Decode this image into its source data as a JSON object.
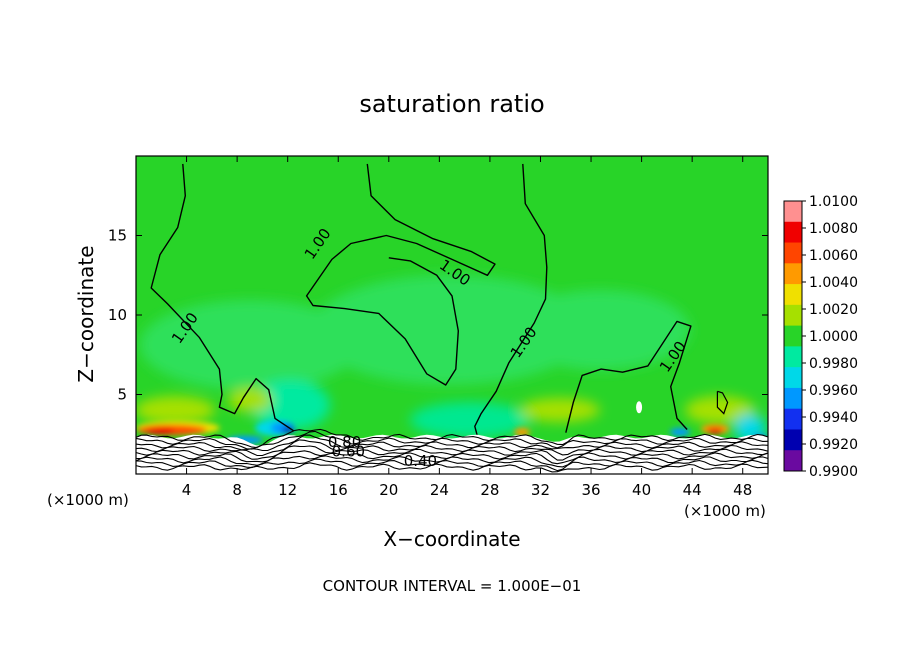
{
  "chart_data": {
    "type": "heatmap",
    "title": "saturation ratio",
    "xlabel": "X−coordinate",
    "ylabel": "Z−coordinate",
    "x_unit_left": "(×1000 m)",
    "x_unit_right": "(×1000 m)",
    "xlim": [
      0,
      50
    ],
    "ylim": [
      0,
      20
    ],
    "x_ticks": [
      4,
      8,
      12,
      16,
      20,
      24,
      28,
      32,
      36,
      40,
      44,
      48
    ],
    "y_ticks": [
      5,
      10,
      15
    ],
    "footer": "CONTOUR INTERVAL = 1.000E−01",
    "colorbar": {
      "levels": [
        "1.0100",
        "1.0080",
        "1.0060",
        "1.0040",
        "1.0020",
        "1.0000",
        "0.9980",
        "0.9960",
        "0.9940",
        "0.9920",
        "0.9900"
      ],
      "colors": [
        "#ff9090",
        "#f00000",
        "#ff4500",
        "#ff9a00",
        "#f0e000",
        "#a6e000",
        "#28d428",
        "#00eaa0",
        "#00d8e8",
        "#0098ff",
        "#1230f0",
        "#0000b0",
        "#6a0aa0"
      ]
    },
    "contour_labels": [
      {
        "text": "1.00",
        "x": 14.7,
        "y": 14.3
      },
      {
        "text": "1.00",
        "x": 25.0,
        "y": 12.4
      },
      {
        "text": "1.00",
        "x": 4.2,
        "y": 9.0
      },
      {
        "text": "1.00",
        "x": 31.0,
        "y": 8.1
      },
      {
        "text": "1.00",
        "x": 42.8,
        "y": 7.2
      },
      {
        "text": "0.80",
        "x": 16.5,
        "y": 1.7
      },
      {
        "text": "0.60",
        "x": 16.8,
        "y": 1.1
      },
      {
        "text": "0.40",
        "x": 22.5,
        "y": 0.5
      }
    ],
    "contour_1_00": [
      [
        [
          3.7,
          19.5
        ],
        [
          3.9,
          17.5
        ],
        [
          3.3,
          15.5
        ],
        [
          1.9,
          13.8
        ],
        [
          1.2,
          11.7
        ],
        [
          2.5,
          10.7
        ],
        [
          5.0,
          8.6
        ],
        [
          6.6,
          6.6
        ],
        [
          6.8,
          5.0
        ],
        [
          6.6,
          4.2
        ],
        [
          7.8,
          3.8
        ],
        [
          8.5,
          4.8
        ],
        [
          9.5,
          6.0
        ],
        [
          10.5,
          5.3
        ],
        [
          11.0,
          3.5
        ],
        [
          12.5,
          2.7
        ]
      ],
      [
        [
          18.3,
          19.5
        ],
        [
          18.6,
          17.5
        ],
        [
          20.5,
          16.0
        ],
        [
          23.5,
          14.8
        ],
        [
          26.5,
          14.0
        ],
        [
          28.4,
          13.2
        ],
        [
          27.8,
          12.5
        ],
        [
          25.0,
          13.5
        ],
        [
          22.2,
          14.5
        ],
        [
          19.8,
          15.0
        ],
        [
          17.0,
          14.5
        ],
        [
          15.5,
          13.5
        ],
        [
          13.5,
          11.2
        ],
        [
          14.0,
          10.6
        ],
        [
          16.5,
          10.4
        ],
        [
          19.2,
          10.1
        ],
        [
          21.3,
          8.5
        ],
        [
          23.0,
          6.3
        ],
        [
          24.5,
          5.6
        ],
        [
          25.3,
          6.6
        ],
        [
          25.5,
          9.0
        ],
        [
          25.0,
          11.2
        ],
        [
          23.8,
          12.5
        ],
        [
          21.7,
          13.4
        ],
        [
          20.0,
          13.6
        ]
      ],
      [
        [
          30.6,
          19.5
        ],
        [
          30.8,
          17.0
        ],
        [
          32.3,
          15.0
        ],
        [
          32.5,
          13.0
        ],
        [
          32.4,
          11.0
        ],
        [
          31.5,
          9.5
        ],
        [
          29.5,
          7.0
        ],
        [
          28.5,
          5.2
        ],
        [
          27.3,
          3.8
        ],
        [
          26.8,
          3.0
        ],
        [
          27.0,
          2.4
        ]
      ],
      [
        [
          34.0,
          2.6
        ],
        [
          34.6,
          4.5
        ],
        [
          35.3,
          6.2
        ],
        [
          36.8,
          6.6
        ],
        [
          38.5,
          6.4
        ],
        [
          40.5,
          6.8
        ],
        [
          41.9,
          8.5
        ],
        [
          42.8,
          9.6
        ],
        [
          43.9,
          9.3
        ],
        [
          43.0,
          7.0
        ],
        [
          42.3,
          5.5
        ],
        [
          42.8,
          3.5
        ],
        [
          43.6,
          2.8
        ]
      ]
    ],
    "contour_small": [
      [
        [
          46.0,
          5.2
        ],
        [
          46.4,
          5.1
        ],
        [
          46.8,
          4.5
        ],
        [
          46.5,
          3.8
        ],
        [
          46.0,
          4.2
        ],
        [
          46.0,
          5.2
        ]
      ]
    ],
    "contour_lower_levels": [
      0.9,
      0.8,
      0.7,
      0.6,
      0.5,
      0.4,
      0.3,
      0.2,
      0.1
    ]
  }
}
